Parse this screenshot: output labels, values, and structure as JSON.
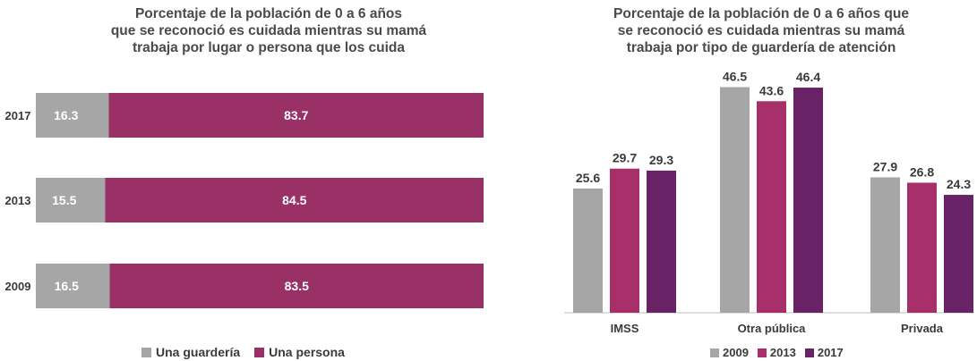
{
  "chart_data": [
    {
      "type": "bar",
      "orientation": "horizontal",
      "stacked": true,
      "title": "Porcentaje de la población de 0 a 6 años\nque se reconoció es cuidada mientras su mamá\ntrabaja por lugar o persona que los cuida",
      "categories": [
        "2017",
        "2013",
        "2009"
      ],
      "series": [
        {
          "name": "Una guardería",
          "values": [
            16.3,
            15.5,
            16.5
          ],
          "color": "#a6a6a6"
        },
        {
          "name": "Una persona",
          "values": [
            83.7,
            84.5,
            83.5
          ],
          "color": "#993066"
        }
      ],
      "xlim": [
        0,
        100
      ],
      "legend": "bottom"
    },
    {
      "type": "bar",
      "title": "Porcentaje de la población de 0 a 6 años que\nse reconoció es cuidada mientras su mamá\ntrabaja por tipo de guardería de atención",
      "categories": [
        "IMSS",
        "Otra pública",
        "Privada"
      ],
      "series": [
        {
          "name": "2009",
          "values": [
            25.6,
            46.5,
            27.9
          ],
          "color": "#a6a6a6"
        },
        {
          "name": "2013",
          "values": [
            29.7,
            43.6,
            26.8
          ],
          "color": "#a8306a"
        },
        {
          "name": "2017",
          "values": [
            29.3,
            46.4,
            24.3
          ],
          "color": "#6a2266"
        }
      ],
      "ylim": [
        0,
        50
      ],
      "legend": "bottom"
    }
  ]
}
